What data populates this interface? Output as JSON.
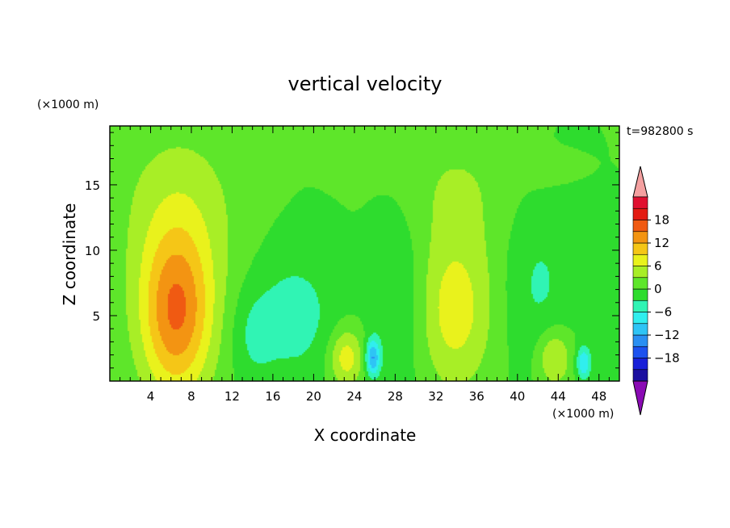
{
  "chart_data": {
    "type": "heatmap",
    "title": "vertical velocity",
    "xlabel": "X coordinate",
    "ylabel": "Z coordinate",
    "x_unit": "(×1000 m)",
    "y_unit": "(×1000 m)",
    "time_label": "t=982800 s",
    "xlim": [
      0,
      50
    ],
    "ylim": [
      0,
      19.5
    ],
    "x_ticks": [
      4,
      8,
      12,
      16,
      20,
      24,
      28,
      32,
      36,
      40,
      44,
      48
    ],
    "y_ticks": [
      5,
      10,
      15
    ],
    "colorbar": {
      "tick_values": [
        18,
        12,
        6,
        0,
        -6,
        -12,
        -18
      ],
      "levels": [
        -21,
        -18,
        -15,
        -12,
        -9,
        -6,
        -3,
        0,
        3,
        6,
        9,
        12,
        15,
        18,
        21
      ],
      "colors": [
        "#1c0fa0",
        "#1820d8",
        "#1d52ef",
        "#2a8ff2",
        "#2ec4f5",
        "#30eeee",
        "#30f4b4",
        "#2edc2e",
        "#5ee62a",
        "#a8ee26",
        "#e9f21c",
        "#f5c617",
        "#f39412",
        "#f05a12",
        "#e31b12",
        "#e01030"
      ],
      "over_color": "#f4a0a0",
      "under_color": "#8a0ab4",
      "note": "colors are discrete contour bands, lowest band first"
    },
    "features": [
      {
        "x": 6.5,
        "z": 5.0,
        "peak": 13,
        "sx": 2.4,
        "sz": 4.5
      },
      {
        "x": 7.0,
        "z": 10.0,
        "peak": 4,
        "sx": 4.2,
        "sz": 6.0
      },
      {
        "x": 6.5,
        "z": 15.0,
        "peak": 1.5,
        "sx": 4.5,
        "sz": 3.5
      },
      {
        "x": 23.2,
        "z": 1.8,
        "peak": 8,
        "sx": 1.2,
        "sz": 1.6
      },
      {
        "x": 33.8,
        "z": 4.8,
        "peak": 6.5,
        "sx": 2.6,
        "sz": 4.0
      },
      {
        "x": 34.0,
        "z": 11.0,
        "peak": 2.5,
        "sx": 3.8,
        "sz": 5.0
      },
      {
        "x": 34.0,
        "z": 15.5,
        "peak": 1.5,
        "sx": 4.5,
        "sz": 3.0
      },
      {
        "x": 43.6,
        "z": 1.8,
        "peak": 7,
        "sx": 1.2,
        "sz": 1.6
      },
      {
        "x": 25.8,
        "z": 1.8,
        "peak": -12,
        "sx": 0.5,
        "sz": 1.0
      },
      {
        "x": 46.5,
        "z": 1.4,
        "peak": -9,
        "sx": 0.5,
        "sz": 0.9
      },
      {
        "x": 18.0,
        "z": 5.0,
        "peak": -4.5,
        "sx": 3.0,
        "sz": 3.5
      },
      {
        "x": 28.5,
        "z": 6.5,
        "peak": -3.5,
        "sx": 2.0,
        "sz": 5.0
      },
      {
        "x": 42.0,
        "z": 7.5,
        "peak": -3.5,
        "sx": 2.5,
        "sz": 4.5
      },
      {
        "x": 14.0,
        "z": 3.5,
        "peak": -3.0,
        "sx": 1.5,
        "sz": 2.5
      },
      {
        "x": 23.5,
        "z": 16.3,
        "peak": 1.5,
        "sx": 1.5,
        "sz": 0.8
      },
      {
        "x": 42.0,
        "z": 16.0,
        "peak": 1.5,
        "sx": 2.0,
        "sz": 0.9
      }
    ]
  }
}
